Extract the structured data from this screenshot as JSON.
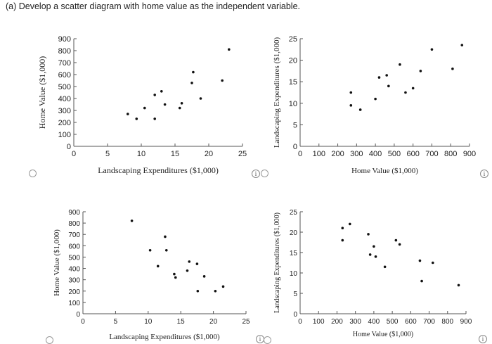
{
  "question": {
    "label": "(a) Develop a scatter diagram with home value as the independent variable."
  },
  "chart_data": [
    {
      "type": "scatter",
      "option": "A",
      "xlabel": "Landscaping Expenditures ($1,000)",
      "ylabel": "Home Value ($1,000)",
      "xlim": [
        0,
        25
      ],
      "ylim": [
        0,
        900
      ],
      "xticks": [
        "0",
        "5",
        "10",
        "15",
        "20",
        "25"
      ],
      "yticks": [
        "0",
        "100",
        "200",
        "300",
        "400",
        "500",
        "600",
        "700",
        "800",
        "900"
      ],
      "points": [
        {
          "x": 8,
          "y": 270
        },
        {
          "x": 9.3,
          "y": 230
        },
        {
          "x": 10.5,
          "y": 320
        },
        {
          "x": 12,
          "y": 230
        },
        {
          "x": 12,
          "y": 430
        },
        {
          "x": 13,
          "y": 460
        },
        {
          "x": 13.5,
          "y": 350
        },
        {
          "x": 15.7,
          "y": 320
        },
        {
          "x": 16,
          "y": 360
        },
        {
          "x": 17.5,
          "y": 530
        },
        {
          "x": 17.7,
          "y": 620
        },
        {
          "x": 18.8,
          "y": 400
        },
        {
          "x": 22,
          "y": 550
        },
        {
          "x": 23,
          "y": 810
        }
      ]
    },
    {
      "type": "scatter",
      "option": "B",
      "xlabel": "Home Value ($1,000)",
      "ylabel": "Landscaping Expenditures ($1,000)",
      "xlim": [
        0,
        900
      ],
      "ylim": [
        0,
        25
      ],
      "xticks": [
        "0",
        "100",
        "200",
        "300",
        "400",
        "500",
        "600",
        "700",
        "800",
        "900"
      ],
      "yticks": [
        "0",
        "5",
        "10",
        "15",
        "20",
        "25"
      ],
      "points": [
        {
          "x": 270,
          "y": 12.5
        },
        {
          "x": 270,
          "y": 9.5
        },
        {
          "x": 320,
          "y": 8.5
        },
        {
          "x": 400,
          "y": 11
        },
        {
          "x": 420,
          "y": 16
        },
        {
          "x": 460,
          "y": 16.5
        },
        {
          "x": 470,
          "y": 14
        },
        {
          "x": 530,
          "y": 19
        },
        {
          "x": 560,
          "y": 12.5
        },
        {
          "x": 600,
          "y": 13.5
        },
        {
          "x": 640,
          "y": 17.5
        },
        {
          "x": 700,
          "y": 22.5
        },
        {
          "x": 810,
          "y": 18
        },
        {
          "x": 860,
          "y": 23.5
        }
      ]
    },
    {
      "type": "scatter",
      "option": "C",
      "xlabel": "Landscaping Expenditures ($1,000)",
      "ylabel": "Home Value ($1,000)",
      "xlim": [
        0,
        25
      ],
      "ylim": [
        0,
        900
      ],
      "xticks": [
        "0",
        "5",
        "10",
        "15",
        "20",
        "25"
      ],
      "yticks": [
        "0",
        "100",
        "200",
        "300",
        "400",
        "500",
        "600",
        "700",
        "800",
        "900"
      ],
      "points": [
        {
          "x": 7.5,
          "y": 820
        },
        {
          "x": 10.3,
          "y": 560
        },
        {
          "x": 12.6,
          "y": 680
        },
        {
          "x": 12.8,
          "y": 560
        },
        {
          "x": 11.5,
          "y": 420
        },
        {
          "x": 14,
          "y": 350
        },
        {
          "x": 14.2,
          "y": 320
        },
        {
          "x": 16,
          "y": 380
        },
        {
          "x": 16.3,
          "y": 460
        },
        {
          "x": 17.5,
          "y": 440
        },
        {
          "x": 18.6,
          "y": 330
        },
        {
          "x": 17.6,
          "y": 200
        },
        {
          "x": 20.3,
          "y": 200
        },
        {
          "x": 21.5,
          "y": 240
        }
      ]
    },
    {
      "type": "scatter",
      "option": "D",
      "xlabel": "Home Value ($1,000)",
      "ylabel": "Landscaping Expenditures ($1,000)",
      "xlim": [
        0,
        900
      ],
      "ylim": [
        0,
        25
      ],
      "xticks": [
        "0",
        "100",
        "200",
        "300",
        "400",
        "500",
        "600",
        "700",
        "800",
        "900"
      ],
      "yticks": [
        "0",
        "5",
        "10",
        "15",
        "20",
        "25"
      ],
      "points": [
        {
          "x": 230,
          "y": 21
        },
        {
          "x": 230,
          "y": 18
        },
        {
          "x": 270,
          "y": 22
        },
        {
          "x": 370,
          "y": 19.5
        },
        {
          "x": 400,
          "y": 16.5
        },
        {
          "x": 380,
          "y": 14.5
        },
        {
          "x": 410,
          "y": 14
        },
        {
          "x": 460,
          "y": 11.5
        },
        {
          "x": 520,
          "y": 18
        },
        {
          "x": 540,
          "y": 17
        },
        {
          "x": 650,
          "y": 13
        },
        {
          "x": 660,
          "y": 8
        },
        {
          "x": 720,
          "y": 12.5
        },
        {
          "x": 860,
          "y": 7
        }
      ]
    }
  ]
}
